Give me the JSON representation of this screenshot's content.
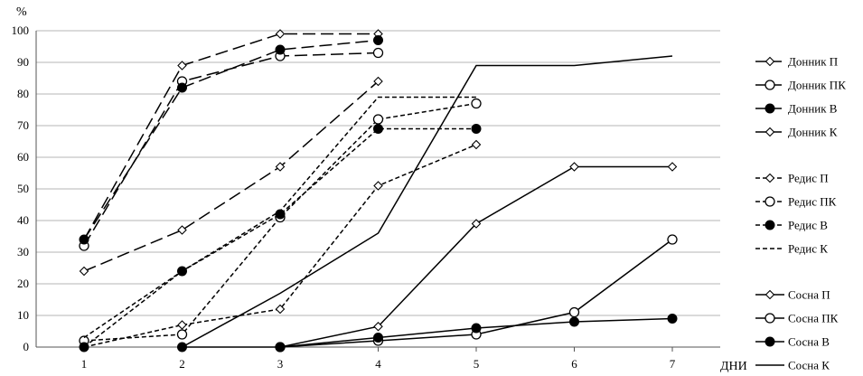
{
  "chart_data": {
    "type": "line",
    "title": "",
    "ylabel": "%",
    "xlabel": "ДНИ",
    "x": [
      1,
      2,
      3,
      4,
      5,
      6,
      7
    ],
    "xlim": [
      1,
      7
    ],
    "ylim": [
      0,
      100
    ],
    "yticks": [
      0,
      10,
      20,
      30,
      40,
      50,
      60,
      70,
      80,
      90,
      100
    ],
    "xticks": [
      1,
      2,
      3,
      4,
      5,
      6,
      7
    ],
    "grid": "horizontal",
    "legend_position": "right",
    "series": [
      {
        "name": "Донник П",
        "marker": "diamond",
        "dash": "long",
        "x": [
          1,
          2,
          3,
          4
        ],
        "y": [
          34,
          89,
          99,
          99
        ]
      },
      {
        "name": "Донник ПК",
        "marker": "circle-open",
        "dash": "long",
        "x": [
          1,
          2,
          3,
          4
        ],
        "y": [
          32,
          84,
          92,
          93
        ]
      },
      {
        "name": "Донник В",
        "marker": "circle-filled",
        "dash": "long",
        "x": [
          1,
          2,
          3,
          4
        ],
        "y": [
          34,
          82,
          94,
          97
        ]
      },
      {
        "name": "Донник К",
        "marker": "diamond",
        "dash": "long",
        "x": [
          1,
          2,
          3,
          4
        ],
        "y": [
          24,
          37,
          57,
          84
        ]
      },
      {
        "name": "Редис П",
        "marker": "diamond",
        "dash": "short",
        "x": [
          1,
          2,
          3,
          4,
          5
        ],
        "y": [
          0,
          7,
          12,
          51,
          64
        ]
      },
      {
        "name": "Редис ПК",
        "marker": "circle-open",
        "dash": "short",
        "x": [
          1,
          2,
          3,
          4,
          5
        ],
        "y": [
          2,
          4,
          41,
          72,
          77
        ]
      },
      {
        "name": "Редис В",
        "marker": "circle-filled",
        "dash": "short",
        "x": [
          1,
          2,
          3,
          4,
          5
        ],
        "y": [
          0,
          24,
          42,
          69,
          69
        ]
      },
      {
        "name": "Редис К",
        "marker": "none",
        "dash": "short",
        "x": [
          1,
          2,
          3,
          4,
          5
        ],
        "y": [
          3,
          24,
          43,
          79,
          79
        ]
      },
      {
        "name": "Сосна П",
        "marker": "diamond",
        "dash": "solid",
        "x": [
          3,
          4,
          5,
          6,
          7
        ],
        "y": [
          0,
          6.5,
          39,
          57,
          57
        ]
      },
      {
        "name": "Сосна ПК",
        "marker": "circle-open",
        "dash": "solid",
        "x": [
          3,
          4,
          5,
          6,
          7
        ],
        "y": [
          0,
          2,
          4,
          11,
          34
        ]
      },
      {
        "name": "Сосна В",
        "marker": "circle-filled",
        "dash": "solid",
        "x": [
          2,
          3,
          4,
          5,
          6,
          7
        ],
        "y": [
          0,
          0,
          3,
          6,
          8,
          9
        ]
      },
      {
        "name": "Сосна К",
        "marker": "none",
        "dash": "solid",
        "x": [
          2,
          3,
          4,
          5,
          6,
          7
        ],
        "y": [
          0,
          17,
          36,
          89,
          89,
          92
        ]
      }
    ]
  }
}
